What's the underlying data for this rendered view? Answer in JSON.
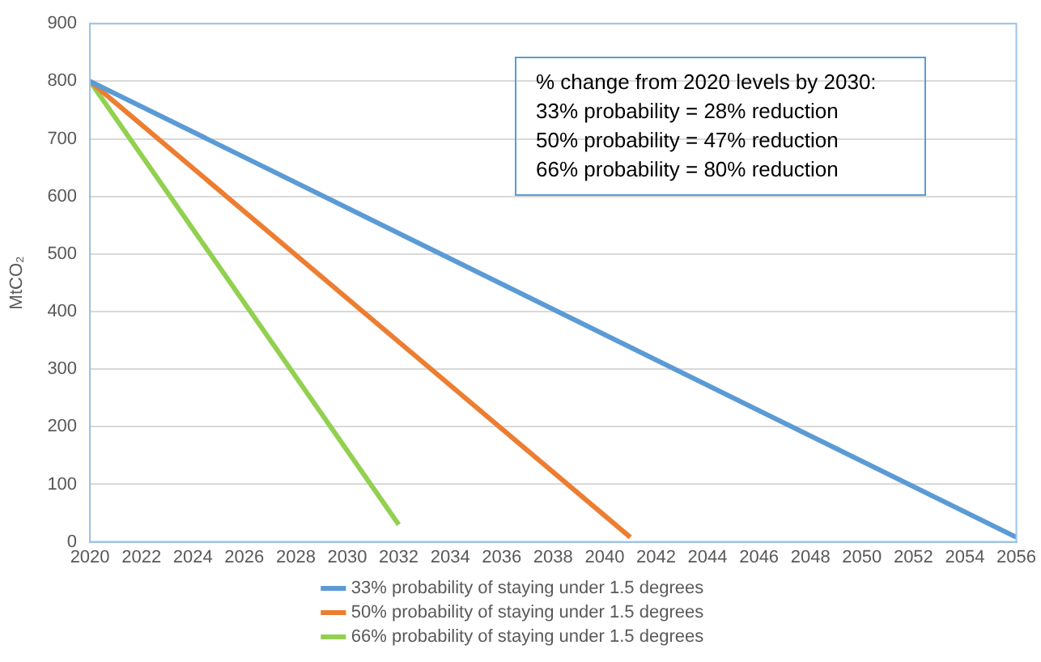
{
  "chart_data": {
    "type": "line",
    "ylabel": "MtCO₂",
    "xlim": [
      2020,
      2056
    ],
    "xticks": [
      2020,
      2022,
      2024,
      2026,
      2028,
      2030,
      2032,
      2034,
      2036,
      2038,
      2040,
      2042,
      2044,
      2046,
      2048,
      2050,
      2052,
      2054,
      2056
    ],
    "ylim": [
      0,
      900
    ],
    "yticks": [
      0,
      100,
      200,
      300,
      400,
      500,
      600,
      700,
      800,
      900
    ],
    "series": [
      {
        "name": "33% probability of staying under 1.5 degrees",
        "color": "#5b9bd5",
        "x": [
          2020,
          2056
        ],
        "values": [
          800,
          8
        ]
      },
      {
        "name": "50% probability of staying under 1.5 degrees",
        "color": "#ed7d31",
        "x": [
          2020,
          2041
        ],
        "values": [
          800,
          8
        ]
      },
      {
        "name": "66% probability of staying under 1.5 degrees",
        "color": "#92d050",
        "x": [
          2020,
          2032
        ],
        "values": [
          800,
          30
        ]
      }
    ],
    "annotations": [
      "% change from 2020 levels by 2030:\n33% probability = 28% reduction\n50% probability = 47% reduction\n66% probability = 80% reduction"
    ],
    "grid": "y",
    "legend": "bottom",
    "marker": "none",
    "line_style": "solid"
  }
}
